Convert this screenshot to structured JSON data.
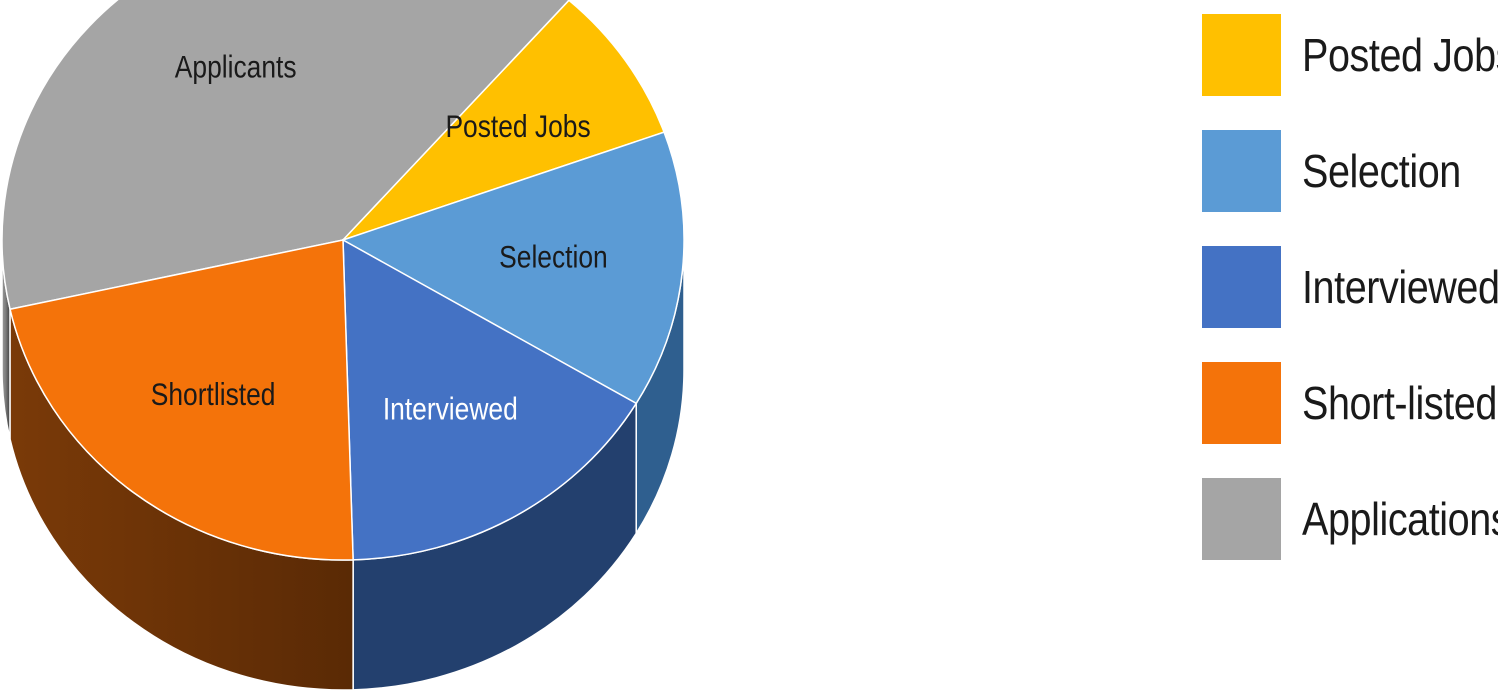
{
  "chart_data": {
    "type": "pie",
    "variant": "3d",
    "slices": [
      {
        "label": "Applicants",
        "value": 40,
        "color": "#a5a5a5",
        "text_color": "#1a1a1a"
      },
      {
        "label": "Posted Jobs",
        "value": 8,
        "color": "#ffc000",
        "text_color": "#1a1a1a"
      },
      {
        "label": "Selection",
        "value": 14,
        "color": "#5b9bd5",
        "text_color": "#1a1a1a"
      },
      {
        "label": "Interviewed",
        "value": 16,
        "color": "#4472c4",
        "text_color": "#ffffff"
      },
      {
        "label": "Shortlisted",
        "value": 22,
        "color": "#f4730a",
        "text_color": "#1a1a1a"
      }
    ],
    "legend": {
      "position": "right",
      "items": [
        {
          "label": "Posted Jobs",
          "color": "#ffc000"
        },
        {
          "label": "Selection",
          "color": "#5b9bd5"
        },
        {
          "label": "Interviewed",
          "color": "#4472c4"
        },
        {
          "label": "Short-listed",
          "color": "#f4730a"
        },
        {
          "label": "Applications",
          "color": "#a5a5a5"
        }
      ]
    }
  }
}
